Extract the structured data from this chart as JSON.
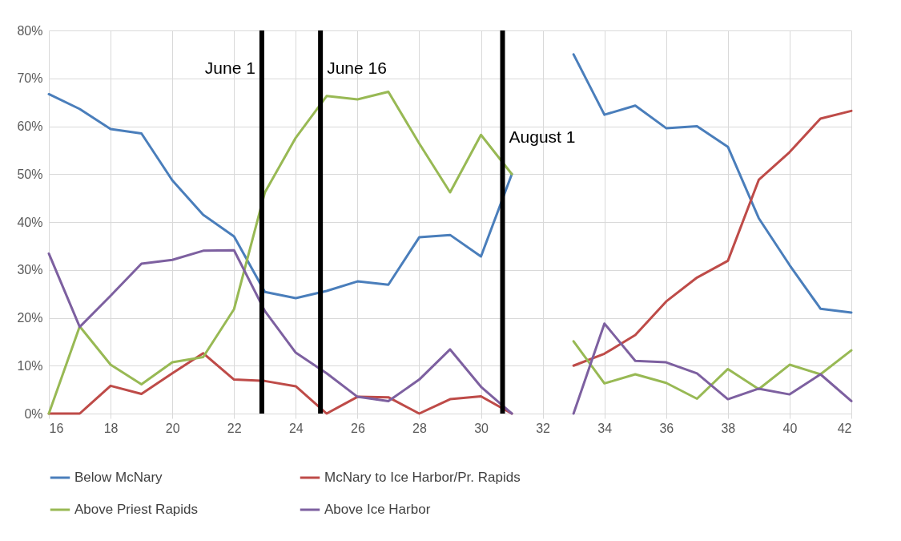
{
  "chart_data": {
    "type": "line",
    "x": [
      16,
      17,
      18,
      19,
      20,
      21,
      22,
      23,
      24,
      25,
      26,
      27,
      28,
      29,
      30,
      31,
      32,
      33,
      34,
      35,
      36,
      37,
      38,
      39,
      40,
      41,
      42
    ],
    "series": [
      {
        "name": "Below McNary",
        "color": "#4a7ebb",
        "values": [
          66.7,
          63.6,
          59.4,
          58.5,
          48.7,
          41.5,
          37,
          25.4,
          24.1,
          25.6,
          27.6,
          26.9,
          36.8,
          37.3,
          32.8,
          50,
          null,
          75,
          62.4,
          64.3,
          59.6,
          60,
          55.7,
          40.8,
          31,
          21.9,
          21.1
        ]
      },
      {
        "name": "McNary to Ice Harbor/Pr. Rapids",
        "color": "#be4b48",
        "values": [
          0,
          0,
          5.8,
          4.1,
          8.4,
          12.6,
          7.1,
          6.8,
          5.7,
          0,
          3.5,
          3.4,
          0,
          3,
          3.6,
          0,
          null,
          10,
          12.5,
          16.4,
          23.4,
          28.4,
          31.9,
          48.8,
          54.6,
          61.6,
          63.2
        ]
      },
      {
        "name": "Above Priest Rapids",
        "color": "#98b954",
        "values": [
          0,
          18.2,
          10.2,
          6.1,
          10.7,
          11.8,
          21.8,
          46.2,
          57.6,
          66.3,
          65.6,
          67.2,
          56.4,
          46.2,
          58.2,
          50,
          null,
          15.1,
          6.3,
          8.2,
          6.4,
          3.1,
          9.3,
          5.1,
          10.2,
          8.2,
          13.2
        ]
      },
      {
        "name": "Above Ice Harbor",
        "color": "#7d60a0",
        "values": [
          33.4,
          18.1,
          24.6,
          31.3,
          32.1,
          34,
          34.1,
          21.4,
          12.7,
          8.4,
          3.5,
          2.6,
          7.1,
          13.4,
          5.6,
          0,
          null,
          0,
          18.8,
          11,
          10.7,
          8.4,
          3,
          5.2,
          4,
          8.2,
          2.6
        ]
      }
    ],
    "xlim": [
      16,
      42
    ],
    "xticks": [
      16,
      18,
      20,
      22,
      24,
      26,
      28,
      30,
      32,
      34,
      36,
      38,
      40,
      42
    ],
    "ylim": [
      0,
      80
    ],
    "yticks": [
      {
        "value": 0,
        "label": "0%"
      },
      {
        "value": 10,
        "label": "10%"
      },
      {
        "value": 20,
        "label": "20%"
      },
      {
        "value": 30,
        "label": "30%"
      },
      {
        "value": 40,
        "label": "40%"
      },
      {
        "value": 50,
        "label": "50%"
      },
      {
        "value": 60,
        "label": "60%"
      },
      {
        "value": 70,
        "label": "70%"
      },
      {
        "value": 80,
        "label": "80%"
      }
    ],
    "ref_lines": [
      {
        "axis": "x",
        "value": 22.9,
        "label": "June 1",
        "color": "#000000"
      },
      {
        "axis": "x",
        "value": 24.8,
        "label": "June 16",
        "color": "#000000"
      },
      {
        "axis": "x",
        "value": 30.7,
        "label": "August 1",
        "color": "#000000"
      }
    ],
    "grid": true,
    "legend": "bottom",
    "line_style": "solid",
    "marker": "none"
  }
}
